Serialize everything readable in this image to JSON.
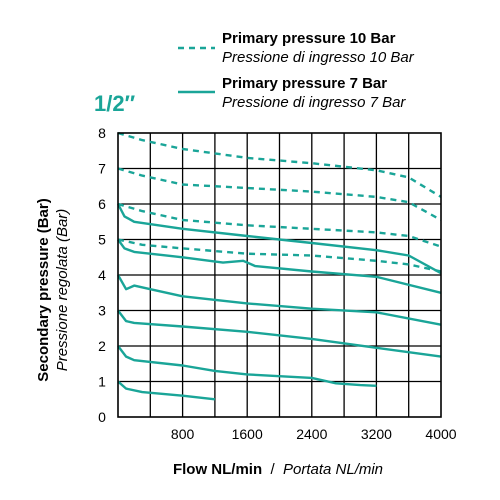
{
  "chart_data": {
    "type": "line",
    "title": "1/2″",
    "xlabel_bold": "Flow NL/min",
    "xlabel_sep": " / ",
    "xlabel_italic": "Portata NL/min",
    "ylabel_bold": "Secondary pressure (Bar)",
    "ylabel_italic": "Pressione regolata (Bar)",
    "xlim": [
      0,
      4000
    ],
    "ylim": [
      0,
      8
    ],
    "x_ticks": [
      800,
      1600,
      2400,
      3200,
      4000
    ],
    "y_ticks": [
      0,
      1,
      2,
      3,
      4,
      5,
      6,
      7,
      8
    ],
    "grid": true,
    "legend_position": "top-right",
    "legend": [
      {
        "style": "dashed",
        "label_bold": "Primary pressure 10 Bar",
        "label_italic": "Pressione di ingresso 10 Bar"
      },
      {
        "style": "solid",
        "label_bold": "Primary pressure 7 Bar",
        "label_italic": "Pressione di ingresso 7 Bar"
      }
    ],
    "line_color": "#1aa598",
    "series": [
      {
        "style": "dashed",
        "points": [
          [
            0,
            8.0
          ],
          [
            300,
            7.8
          ],
          [
            800,
            7.55
          ],
          [
            1600,
            7.3
          ],
          [
            2400,
            7.15
          ],
          [
            3200,
            6.95
          ],
          [
            3600,
            6.75
          ],
          [
            4000,
            6.2
          ]
        ]
      },
      {
        "style": "dashed",
        "points": [
          [
            0,
            7.0
          ],
          [
            300,
            6.8
          ],
          [
            800,
            6.55
          ],
          [
            1600,
            6.45
          ],
          [
            2400,
            6.35
          ],
          [
            3200,
            6.2
          ],
          [
            3600,
            6.05
          ],
          [
            4000,
            5.55
          ]
        ]
      },
      {
        "style": "dashed",
        "points": [
          [
            0,
            6.0
          ],
          [
            300,
            5.8
          ],
          [
            800,
            5.55
          ],
          [
            1600,
            5.4
          ],
          [
            2400,
            5.3
          ],
          [
            3200,
            5.2
          ],
          [
            3600,
            5.1
          ],
          [
            4000,
            4.8
          ]
        ]
      },
      {
        "style": "dashed",
        "points": [
          [
            0,
            5.0
          ],
          [
            300,
            4.85
          ],
          [
            800,
            4.75
          ],
          [
            1600,
            4.6
          ],
          [
            2400,
            4.55
          ],
          [
            3200,
            4.4
          ],
          [
            3600,
            4.3
          ],
          [
            4000,
            4.1
          ]
        ]
      },
      {
        "style": "solid",
        "points": [
          [
            0,
            6.0
          ],
          [
            80,
            5.65
          ],
          [
            200,
            5.5
          ],
          [
            800,
            5.3
          ],
          [
            1600,
            5.1
          ],
          [
            2400,
            4.9
          ],
          [
            3200,
            4.7
          ],
          [
            3600,
            4.55
          ],
          [
            4000,
            4.05
          ]
        ]
      },
      {
        "style": "solid",
        "points": [
          [
            0,
            5.0
          ],
          [
            80,
            4.75
          ],
          [
            200,
            4.65
          ],
          [
            800,
            4.5
          ],
          [
            1300,
            4.35
          ],
          [
            1550,
            4.4
          ],
          [
            1700,
            4.25
          ],
          [
            2400,
            4.1
          ],
          [
            3200,
            3.95
          ],
          [
            4000,
            3.5
          ]
        ]
      },
      {
        "style": "solid",
        "points": [
          [
            0,
            4.0
          ],
          [
            100,
            3.6
          ],
          [
            200,
            3.7
          ],
          [
            400,
            3.6
          ],
          [
            800,
            3.4
          ],
          [
            1600,
            3.2
          ],
          [
            2400,
            3.05
          ],
          [
            3200,
            2.95
          ],
          [
            4000,
            2.6
          ]
        ]
      },
      {
        "style": "solid",
        "points": [
          [
            0,
            3.0
          ],
          [
            100,
            2.7
          ],
          [
            200,
            2.65
          ],
          [
            800,
            2.55
          ],
          [
            1600,
            2.4
          ],
          [
            2400,
            2.2
          ],
          [
            3200,
            1.95
          ],
          [
            4000,
            1.7
          ]
        ]
      },
      {
        "style": "solid",
        "points": [
          [
            0,
            2.0
          ],
          [
            100,
            1.7
          ],
          [
            200,
            1.6
          ],
          [
            800,
            1.45
          ],
          [
            1200,
            1.3
          ],
          [
            1600,
            1.2
          ],
          [
            2400,
            1.1
          ],
          [
            2700,
            0.95
          ],
          [
            3000,
            0.9
          ],
          [
            3200,
            0.88
          ]
        ]
      },
      {
        "style": "solid",
        "points": [
          [
            0,
            1.0
          ],
          [
            100,
            0.8
          ],
          [
            300,
            0.7
          ],
          [
            800,
            0.6
          ],
          [
            1200,
            0.5
          ]
        ]
      }
    ]
  }
}
